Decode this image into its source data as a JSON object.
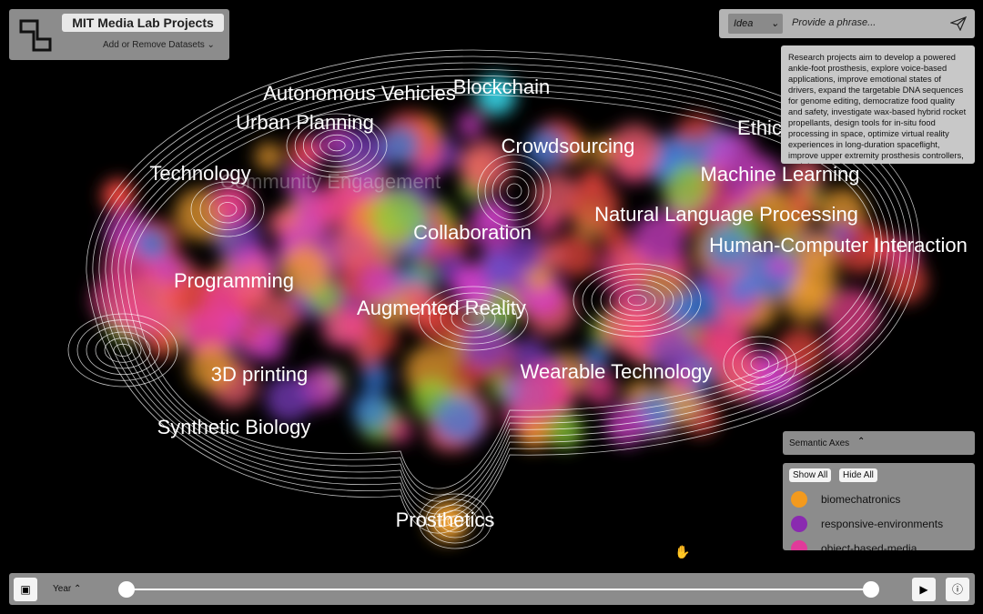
{
  "header": {
    "title": "MIT Media Lab Projects",
    "datasets_button": "Add or Remove Datasets"
  },
  "search": {
    "mode": "Idea",
    "placeholder": "Provide a phrase..."
  },
  "summary": "Research projects aim to develop a powered ankle-foot prosthesis, explore voice-based applications, improve emotional states of drivers, expand the targetable DNA sequences for genome editing, democratize food quality and safety, investigate wax-based hybrid rocket propellants, design tools for in-situ food processing in space, optimize virtual reality experiences in long-duration spaceflight, improve upper extremity prosthesis controllers, and democratize",
  "topics": [
    "Autonomous Vehicles",
    "Blockchain",
    "Urban Planning",
    "Crowdsourcing",
    "Ethics",
    "Technology",
    "Community Engagement",
    "Machine Learning",
    "Natural Language Processing",
    "Collaboration",
    "Human-Computer Interaction",
    "Programming",
    "Augmented Reality",
    "3D printing",
    "Wearable Technology",
    "Synthetic Biology",
    "Prosthetics"
  ],
  "semantic_axes": {
    "title": "Semantic Axes",
    "show_all": "Show All",
    "hide_all": "Hide All",
    "items": [
      {
        "label": "biomechatronics",
        "color": "#f39a1e"
      },
      {
        "label": "responsive-environments",
        "color": "#8a2ab0"
      },
      {
        "label": "object-based-media",
        "color": "#e03a9a"
      }
    ]
  },
  "timeline": {
    "label": "Year"
  }
}
